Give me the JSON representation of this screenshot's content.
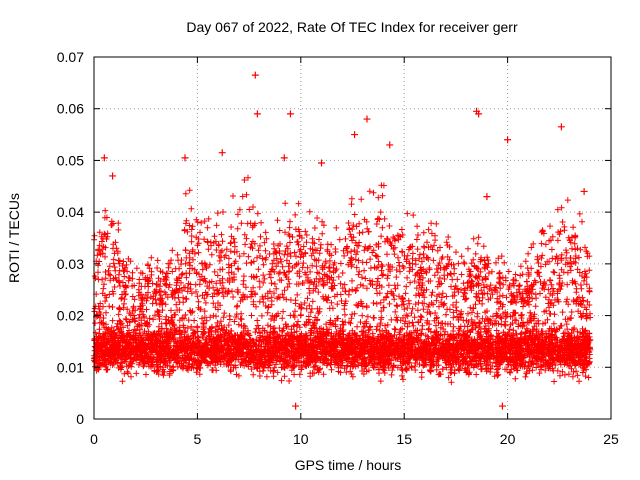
{
  "chart_data": {
    "type": "scatter",
    "title": "Day 067 of 2022, Rate Of TEC Index for receiver gerr",
    "xlabel": "GPS time / hours",
    "ylabel": "ROTI / TECUs",
    "xlim": [
      0,
      25
    ],
    "ylim": [
      0,
      0.07
    ],
    "xticks": [
      0,
      5,
      10,
      15,
      20,
      25
    ],
    "xtick_labels": [
      "0",
      "5",
      "10",
      "15",
      "20",
      "25"
    ],
    "yticks": [
      0,
      0.01,
      0.02,
      0.03,
      0.04,
      0.05,
      0.06,
      0.07
    ],
    "ytick_labels": [
      "0",
      "0.01",
      "0.02",
      "0.03",
      "0.04",
      "0.05",
      "0.06",
      "0.07"
    ],
    "grid": true,
    "marker": "+",
    "marker_color": "#ff0000",
    "series": [
      {
        "name": "ROTI",
        "color": "#ff0000",
        "x_range": [
          0,
          24
        ],
        "baseline_typical": [
          0.005,
          0.025
        ],
        "notable_points": [
          {
            "x": 7.8,
            "y": 0.0665
          },
          {
            "x": 18.5,
            "y": 0.0595
          },
          {
            "x": 18.6,
            "y": 0.059
          },
          {
            "x": 9.5,
            "y": 0.059
          },
          {
            "x": 13.2,
            "y": 0.058
          },
          {
            "x": 7.9,
            "y": 0.059
          },
          {
            "x": 22.6,
            "y": 0.0565
          },
          {
            "x": 12.6,
            "y": 0.055
          },
          {
            "x": 20.0,
            "y": 0.054
          },
          {
            "x": 14.3,
            "y": 0.053
          },
          {
            "x": 0.5,
            "y": 0.0505
          },
          {
            "x": 4.4,
            "y": 0.0505
          },
          {
            "x": 9.2,
            "y": 0.0505
          },
          {
            "x": 11.0,
            "y": 0.0495
          },
          {
            "x": 6.2,
            "y": 0.0515
          },
          {
            "x": 0.9,
            "y": 0.047
          },
          {
            "x": 19.0,
            "y": 0.043
          },
          {
            "x": 23.7,
            "y": 0.044
          },
          {
            "x": 9.75,
            "y": 0.0025
          },
          {
            "x": 19.75,
            "y": 0.0025
          }
        ]
      }
    ]
  }
}
